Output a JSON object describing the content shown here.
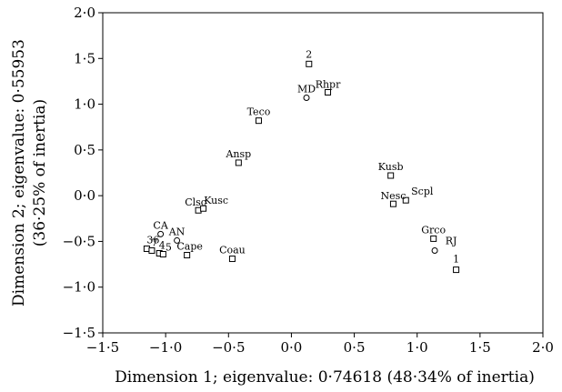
{
  "chart_data": {
    "type": "scatter",
    "xlabel": "Dimension 1; eigenvalue: 0·74618 (48·34% of inertia)",
    "ylabel_lines": [
      "Dimension 2; eigenvalue: 0·55953",
      "(36·25% of inertia)"
    ],
    "xlim": [
      -1.5,
      2.0
    ],
    "ylim": [
      -1.5,
      2.0
    ],
    "xticks": [
      -1.5,
      -1.0,
      -0.5,
      0.0,
      0.5,
      1.0,
      1.5,
      2.0
    ],
    "yticks": [
      -1.5,
      -1.0,
      -0.5,
      0.0,
      0.5,
      1.0,
      1.5,
      2.0
    ],
    "xtick_labels": [
      "−1·5",
      "−1·0",
      "−0·5",
      "0·0",
      "0·5",
      "1·0",
      "1·5",
      "2·0"
    ],
    "ytick_labels": [
      "−1·5",
      "−1·0",
      "−0·5",
      "0·0",
      "0·5",
      "1·0",
      "1·5",
      "2·0"
    ],
    "grid": false,
    "marker_legend": {
      "square": "categories",
      "circle": "sites"
    },
    "points": [
      {
        "label": "2",
        "x": 0.14,
        "y": 1.44,
        "marker": "square"
      },
      {
        "label": "MD",
        "x": 0.12,
        "y": 1.07,
        "marker": "circle"
      },
      {
        "label": "Rhpr",
        "x": 0.29,
        "y": 1.13,
        "marker": "square"
      },
      {
        "label": "Teco",
        "x": -0.26,
        "y": 0.82,
        "marker": "square"
      },
      {
        "label": "Ansp",
        "x": -0.42,
        "y": 0.36,
        "marker": "square"
      },
      {
        "label": "Clsc",
        "x": -0.74,
        "y": -0.16,
        "marker": "square"
      },
      {
        "label": "Kusc",
        "x": -0.7,
        "y": -0.14,
        "marker": "square"
      },
      {
        "label": "Kusb",
        "x": 0.79,
        "y": 0.22,
        "marker": "square"
      },
      {
        "label": "Nesc",
        "x": 0.81,
        "y": -0.09,
        "marker": "square"
      },
      {
        "label": "Scpl",
        "x": 0.91,
        "y": -0.05,
        "marker": "square"
      },
      {
        "label": "Grco",
        "x": 1.13,
        "y": -0.47,
        "marker": "square"
      },
      {
        "label": "RJ",
        "x": 1.14,
        "y": -0.6,
        "marker": "circle"
      },
      {
        "label": "1",
        "x": 1.31,
        "y": -0.81,
        "marker": "square"
      },
      {
        "label": "CA",
        "x": -1.04,
        "y": -0.42,
        "marker": "circle"
      },
      {
        "label": "AN",
        "x": -0.91,
        "y": -0.49,
        "marker": "circle"
      },
      {
        "label": "36",
        "x": -1.15,
        "y": -0.58,
        "marker": "square"
      },
      {
        "label": "7",
        "x": -1.11,
        "y": -0.6,
        "marker": "square"
      },
      {
        "label": "4",
        "x": -1.05,
        "y": -0.63,
        "marker": "square"
      },
      {
        "label": "5",
        "x": -1.02,
        "y": -0.64,
        "marker": "square"
      },
      {
        "label": "Cape",
        "x": -0.83,
        "y": -0.65,
        "marker": "square"
      },
      {
        "label": "Coau",
        "x": -0.47,
        "y": -0.69,
        "marker": "square"
      }
    ]
  }
}
